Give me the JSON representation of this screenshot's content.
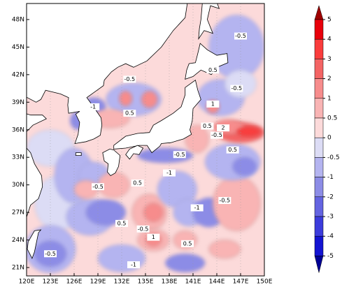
{
  "map": {
    "lon_ticks": [
      "120E",
      "123E",
      "126E",
      "129E",
      "132E",
      "135E",
      "138E",
      "141E",
      "144E",
      "147E",
      "150E"
    ],
    "lat_ticks": [
      "21N",
      "24N",
      "27N",
      "30N",
      "33N",
      "36N",
      "39N",
      "42N",
      "45N",
      "48N"
    ],
    "contour_labels": [
      -0.5,
      0.5,
      -1,
      -0.5,
      -1,
      0.5,
      -0.5,
      0.5,
      -1,
      -0.5,
      -0.5,
      1,
      0.5,
      -0.5,
      -1,
      1,
      0.5,
      2,
      -0.5,
      0.5,
      -0.5,
      0.5,
      -0.5
    ]
  },
  "colorbar": {
    "levels": [
      5,
      4,
      3,
      2,
      1,
      0.5,
      0,
      -0.5,
      -1,
      -2,
      -3,
      -4,
      -5
    ],
    "colors": [
      "#e8000b",
      "#fa3c3c",
      "#f46464",
      "#f78c8c",
      "#f9b4b4",
      "#fcdada",
      "#dcdcf5",
      "#b4b4f0",
      "#8c8ce6",
      "#6464e1",
      "#3c3cdc",
      "#1414d2"
    ],
    "over_color": "#a00000",
    "under_color": "#000096"
  }
}
